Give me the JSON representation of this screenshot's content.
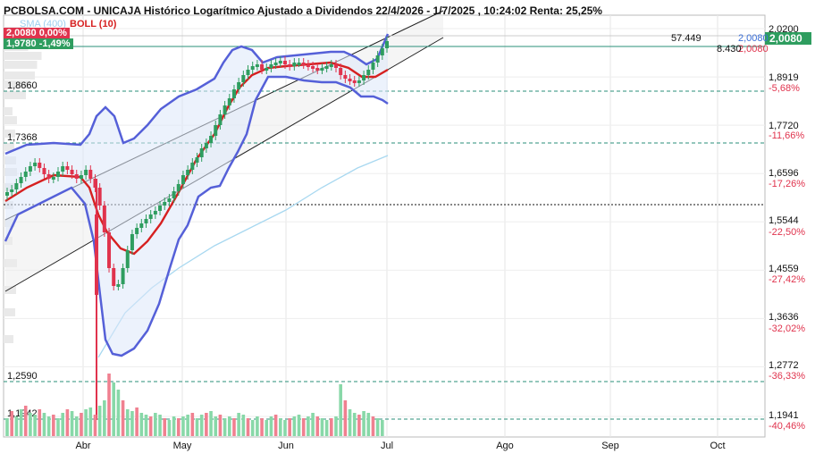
{
  "title": "PCBOLSA.COM - UNICAJA Histórico Logarítmico Ajustado a Dividendos 22/4/2026 - 1/7/2025 , 10:24:02 Renta: 25,25%",
  "legend": {
    "sma": "SMA (400)",
    "boll": "BOLL (10)"
  },
  "header_boxes": {
    "red": "2,0080  0,00%",
    "green": "1,9780  -1,49%"
  },
  "colors": {
    "up": "#2e9d5f",
    "down": "#e0334d",
    "boll_band": "#5560d8",
    "boll_mid": "#d62020",
    "sma": "#a8d8f0",
    "guide": "#2a8f7a",
    "neg_pct": "#e0334d"
  },
  "chart_data": {
    "type": "candlestick",
    "x_ticks": [
      "Abr",
      "May",
      "Jun",
      "Jul",
      "Ago",
      "Sep",
      "Oct"
    ],
    "y_ticks": [
      "2,0200",
      "1,8919",
      "1,7720",
      "1,6596",
      "1,5544",
      "1,4559",
      "1,3636",
      "1,2772",
      "1,1941"
    ],
    "pct_labels": [
      "-5,68%",
      "-11,66%",
      "-17,26%",
      "-22,50%",
      "-27,42%",
      "-32,02%",
      "-36,33%",
      "-40,46%"
    ],
    "level_labels": [
      "1,8660",
      "1,7368",
      "1,2590",
      "1,1942"
    ],
    "right_markers": {
      "blue": "2,0080",
      "red": "2,0080",
      "price_box": "2,0080"
    },
    "annotations": [
      "57.449",
      "8.430"
    ],
    "close_last": 2.008
  }
}
